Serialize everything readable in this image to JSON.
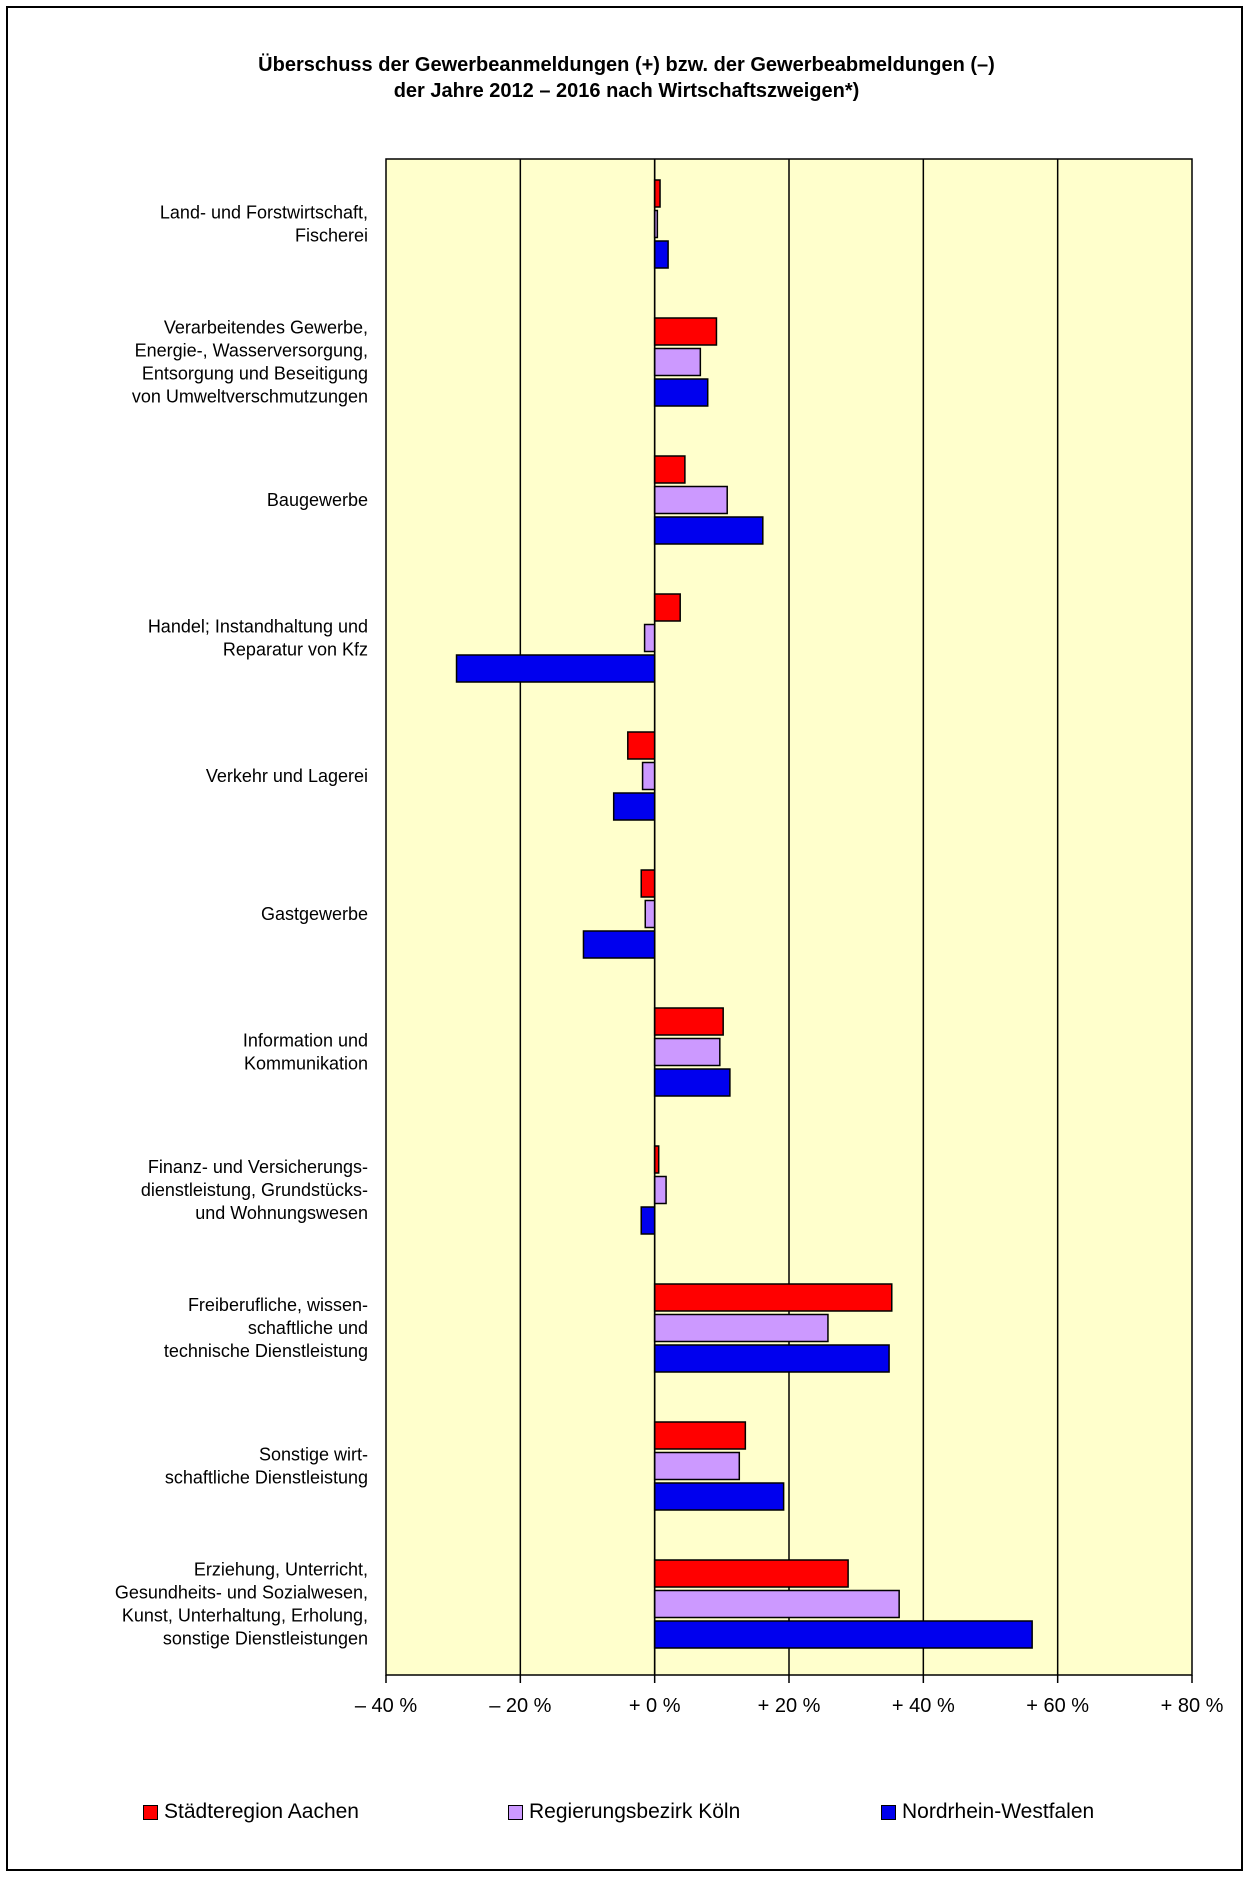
{
  "chart_data": {
    "type": "bar",
    "orientation": "horizontal",
    "title": [
      "Überschuss der Gewerbeanmeldungen (+) bzw. der Gewerbeabmeldungen (–)",
      "der Jahre 2012 – 2016 nach Wirtschaftszweigen*)"
    ],
    "xlim": [
      -40,
      80
    ],
    "x_ticks": [
      -40,
      -20,
      0,
      20,
      40,
      60,
      80
    ],
    "x_tick_labels": [
      "– 40 %",
      "– 20 %",
      "+ 0 %",
      "+ 20 %",
      "+ 40 %",
      "+ 60 %",
      "+ 80 %"
    ],
    "grid": "vertical",
    "legend_position": "bottom",
    "plot_background": "#ffffcc",
    "categories": [
      [
        "Land- und Forstwirtschaft,",
        "Fischerei"
      ],
      [
        "Verarbeitendes Gewerbe,",
        "Energie-, Wasserversorgung,",
        "Entsorgung und Beseitigung",
        "von Umweltverschmutzungen"
      ],
      [
        "Baugewerbe"
      ],
      [
        "Handel; Instandhaltung und",
        "Reparatur von Kfz"
      ],
      [
        "Verkehr und Lagerei"
      ],
      [
        "Gastgewerbe"
      ],
      [
        "Information und",
        "Kommunikation"
      ],
      [
        "Finanz- und Versicherungs-",
        "dienstleistung, Grundstücks-",
        "und Wohnungswesen"
      ],
      [
        "Freiberufliche, wissen-",
        "schaftliche und",
        "technische Dienstleistung"
      ],
      [
        "Sonstige wirt-",
        "schaftliche Dienstleistung"
      ],
      [
        "Erziehung, Unterricht,",
        "Gesundheits- und Sozialwesen,",
        "Kunst, Unterhaltung, Erholung,",
        "sonstige Dienstleistungen"
      ]
    ],
    "series": [
      {
        "name": "Städteregion Aachen",
        "color": "#ff0000",
        "values": [
          0.8,
          9.2,
          4.5,
          3.8,
          -4.0,
          -2.0,
          10.2,
          0.6,
          35.3,
          13.5,
          28.8
        ]
      },
      {
        "name": "Regierungsbezirk Köln",
        "color": "#cc99ff",
        "values": [
          0.4,
          6.8,
          10.8,
          -1.5,
          -1.8,
          -1.4,
          9.7,
          1.7,
          25.8,
          12.6,
          36.4
        ]
      },
      {
        "name": "Nordrhein-Westfalen",
        "color": "#0000ee",
        "values": [
          2.0,
          7.9,
          16.1,
          -29.5,
          -6.1,
          -10.6,
          11.2,
          -2.0,
          34.9,
          19.2,
          56.2
        ]
      }
    ]
  }
}
